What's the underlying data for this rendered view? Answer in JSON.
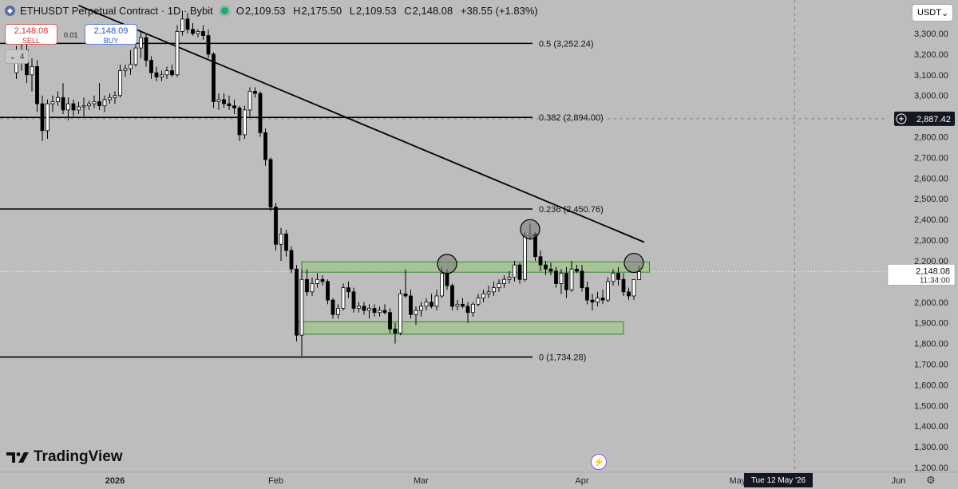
{
  "header": {
    "symbol": "ETHUSDT Perpetual Contract · 1D · Bybit",
    "open_label": "O",
    "open": "2,109.53",
    "high_label": "H",
    "high": "2,175.50",
    "low_label": "L",
    "low": "2,109.53",
    "close_label": "C",
    "close": "2,148.08",
    "change": "+38.55 (+1.83%)"
  },
  "trade": {
    "sell_price": "2,148.08",
    "sell_label": "SELL",
    "buy_price": "2,148.09",
    "buy_label": "BUY",
    "spread": "0.01",
    "indicator_count": "4"
  },
  "currency": "USDT",
  "brand": "TradingView",
  "crosshair": {
    "price": "2,887.42",
    "date": "Tue 12 May '26"
  },
  "last_price": {
    "price": "2,148.08",
    "countdown": "11:34:00"
  },
  "colors": {
    "candle_up": "#ffffff",
    "candle_down": "#000000",
    "background": "#bdbdbd",
    "zone_fill": "#98c878",
    "zone_stroke": "#2e8b2e",
    "circle": "#7a7a7a",
    "price_tag": "#ffffff",
    "crosshair_tag": "#131722"
  },
  "chart_data": {
    "type": "candlestick",
    "y_scale": "linear",
    "ylim": [
      1140,
      3430
    ],
    "y_ticks": [
      "3,300.00",
      "3,200.00",
      "3,100.00",
      "3,000.00",
      "2,800.00",
      "2,700.00",
      "2,600.00",
      "2,500.00",
      "2,400.00",
      "2,300.00",
      "2,200.00",
      "2,100.00",
      "2,000.00",
      "1,900.00",
      "1,800.00",
      "1,700.00",
      "1,600.00",
      "1,500.00",
      "1,400.00",
      "1,300.00",
      "1,200.00"
    ],
    "x_ticks": [
      "2026",
      "Feb",
      "Mar",
      "Apr",
      "May",
      "Jun"
    ],
    "fib_levels": [
      {
        "label": "0.5 (3,252.24)",
        "value": 3252.24
      },
      {
        "label": "0.382 (2,894.00)",
        "value": 2894.0
      },
      {
        "label": "0.236 (2,450.76)",
        "value": 2450.76
      },
      {
        "label": "0 (1,734.28)",
        "value": 1734.28
      }
    ],
    "trendline": {
      "start": {
        "date": "2025-12-25",
        "price": 3436
      },
      "end": {
        "date": "2026-04-13",
        "price": 2290
      }
    },
    "zones": [
      {
        "name": "resistance",
        "date_start": "2026-02-06",
        "date_end": "2026-04-14",
        "price_low": 2145,
        "price_high": 2195
      },
      {
        "name": "support",
        "date_start": "2026-02-05",
        "date_end": "2026-04-09",
        "price_low": 1845,
        "price_high": 1905
      }
    ],
    "markers": [
      {
        "date": "2026-03-06",
        "price": 2185
      },
      {
        "date": "2026-03-22",
        "price": 2353
      },
      {
        "date": "2026-04-11",
        "price": 2190
      }
    ],
    "candles": [
      {
        "d": "2025-12-13",
        "o": 3110,
        "h": 3240,
        "l": 3080,
        "c": 3180
      },
      {
        "d": "2025-12-14",
        "o": 3180,
        "h": 3260,
        "l": 3120,
        "c": 3220
      },
      {
        "d": "2025-12-15",
        "o": 3220,
        "h": 3250,
        "l": 3060,
        "c": 3100
      },
      {
        "d": "2025-12-16",
        "o": 3100,
        "h": 3180,
        "l": 3020,
        "c": 3140
      },
      {
        "d": "2025-12-17",
        "o": 3140,
        "h": 3170,
        "l": 2920,
        "c": 2960
      },
      {
        "d": "2025-12-18",
        "o": 2960,
        "h": 3000,
        "l": 2780,
        "c": 2830
      },
      {
        "d": "2025-12-19",
        "o": 2830,
        "h": 2980,
        "l": 2790,
        "c": 2960
      },
      {
        "d": "2025-12-20",
        "o": 2960,
        "h": 3000,
        "l": 2920,
        "c": 2970
      },
      {
        "d": "2025-12-21",
        "o": 2970,
        "h": 3020,
        "l": 2950,
        "c": 2990
      },
      {
        "d": "2025-12-22",
        "o": 2990,
        "h": 3060,
        "l": 2910,
        "c": 2930
      },
      {
        "d": "2025-12-23",
        "o": 2930,
        "h": 2990,
        "l": 2880,
        "c": 2960
      },
      {
        "d": "2025-12-24",
        "o": 2960,
        "h": 2980,
        "l": 2900,
        "c": 2930
      },
      {
        "d": "2025-12-25",
        "o": 2930,
        "h": 2970,
        "l": 2910,
        "c": 2945
      },
      {
        "d": "2025-12-26",
        "o": 2945,
        "h": 2990,
        "l": 2900,
        "c": 2950
      },
      {
        "d": "2025-12-27",
        "o": 2950,
        "h": 2975,
        "l": 2930,
        "c": 2960
      },
      {
        "d": "2025-12-28",
        "o": 2960,
        "h": 3000,
        "l": 2940,
        "c": 2970
      },
      {
        "d": "2025-12-29",
        "o": 2970,
        "h": 3060,
        "l": 2930,
        "c": 2950
      },
      {
        "d": "2025-12-30",
        "o": 2950,
        "h": 3000,
        "l": 2920,
        "c": 2980
      },
      {
        "d": "2025-12-31",
        "o": 2980,
        "h": 3010,
        "l": 2960,
        "c": 2990
      },
      {
        "d": "2026-01-01",
        "o": 2990,
        "h": 3020,
        "l": 2960,
        "c": 3000
      },
      {
        "d": "2026-01-02",
        "o": 3000,
        "h": 3150,
        "l": 2990,
        "c": 3120
      },
      {
        "d": "2026-01-03",
        "o": 3120,
        "h": 3150,
        "l": 3090,
        "c": 3130
      },
      {
        "d": "2026-01-04",
        "o": 3130,
        "h": 3220,
        "l": 3100,
        "c": 3150
      },
      {
        "d": "2026-01-05",
        "o": 3150,
        "h": 3270,
        "l": 3140,
        "c": 3230
      },
      {
        "d": "2026-01-06",
        "o": 3230,
        "h": 3310,
        "l": 3180,
        "c": 3280
      },
      {
        "d": "2026-01-07",
        "o": 3280,
        "h": 3300,
        "l": 3140,
        "c": 3170
      },
      {
        "d": "2026-01-08",
        "o": 3170,
        "h": 3190,
        "l": 3080,
        "c": 3110
      },
      {
        "d": "2026-01-09",
        "o": 3110,
        "h": 3140,
        "l": 3070,
        "c": 3090
      },
      {
        "d": "2026-01-10",
        "o": 3090,
        "h": 3120,
        "l": 3070,
        "c": 3100
      },
      {
        "d": "2026-01-11",
        "o": 3100,
        "h": 3140,
        "l": 3080,
        "c": 3120
      },
      {
        "d": "2026-01-12",
        "o": 3120,
        "h": 3150,
        "l": 3090,
        "c": 3100
      },
      {
        "d": "2026-01-13",
        "o": 3100,
        "h": 3340,
        "l": 3090,
        "c": 3310
      },
      {
        "d": "2026-01-14",
        "o": 3310,
        "h": 3410,
        "l": 3290,
        "c": 3370
      },
      {
        "d": "2026-01-15",
        "o": 3370,
        "h": 3400,
        "l": 3300,
        "c": 3320
      },
      {
        "d": "2026-01-16",
        "o": 3320,
        "h": 3350,
        "l": 3290,
        "c": 3300
      },
      {
        "d": "2026-01-17",
        "o": 3300,
        "h": 3320,
        "l": 3280,
        "c": 3310
      },
      {
        "d": "2026-01-18",
        "o": 3310,
        "h": 3340,
        "l": 3270,
        "c": 3290
      },
      {
        "d": "2026-01-19",
        "o": 3290,
        "h": 3320,
        "l": 3180,
        "c": 3200
      },
      {
        "d": "2026-01-20",
        "o": 3200,
        "h": 3210,
        "l": 2940,
        "c": 2970
      },
      {
        "d": "2026-01-21",
        "o": 2970,
        "h": 3010,
        "l": 2930,
        "c": 2980
      },
      {
        "d": "2026-01-22",
        "o": 2980,
        "h": 3010,
        "l": 2940,
        "c": 2960
      },
      {
        "d": "2026-01-23",
        "o": 2960,
        "h": 3000,
        "l": 2930,
        "c": 2950
      },
      {
        "d": "2026-01-24",
        "o": 2950,
        "h": 2980,
        "l": 2910,
        "c": 2940
      },
      {
        "d": "2026-01-25",
        "o": 2940,
        "h": 2950,
        "l": 2780,
        "c": 2810
      },
      {
        "d": "2026-01-26",
        "o": 2810,
        "h": 2950,
        "l": 2790,
        "c": 2930
      },
      {
        "d": "2026-01-27",
        "o": 2930,
        "h": 3040,
        "l": 2900,
        "c": 3020
      },
      {
        "d": "2026-01-28",
        "o": 3020,
        "h": 3040,
        "l": 2990,
        "c": 3010
      },
      {
        "d": "2026-01-29",
        "o": 3010,
        "h": 3020,
        "l": 2800,
        "c": 2820
      },
      {
        "d": "2026-01-30",
        "o": 2820,
        "h": 2840,
        "l": 2660,
        "c": 2690
      },
      {
        "d": "2026-01-31",
        "o": 2690,
        "h": 2700,
        "l": 2440,
        "c": 2460
      },
      {
        "d": "2026-02-01",
        "o": 2460,
        "h": 2480,
        "l": 2250,
        "c": 2280
      },
      {
        "d": "2026-02-02",
        "o": 2280,
        "h": 2360,
        "l": 2200,
        "c": 2330
      },
      {
        "d": "2026-02-03",
        "o": 2330,
        "h": 2350,
        "l": 2220,
        "c": 2250
      },
      {
        "d": "2026-02-04",
        "o": 2250,
        "h": 2270,
        "l": 2140,
        "c": 2160
      },
      {
        "d": "2026-02-05",
        "o": 2160,
        "h": 2180,
        "l": 1810,
        "c": 1840
      },
      {
        "d": "2026-02-06",
        "o": 1840,
        "h": 2160,
        "l": 1740,
        "c": 2110
      },
      {
        "d": "2026-02-07",
        "o": 2110,
        "h": 2160,
        "l": 2030,
        "c": 2050
      },
      {
        "d": "2026-02-08",
        "o": 2050,
        "h": 2120,
        "l": 2030,
        "c": 2090
      },
      {
        "d": "2026-02-09",
        "o": 2090,
        "h": 2140,
        "l": 2070,
        "c": 2110
      },
      {
        "d": "2026-02-10",
        "o": 2110,
        "h": 2130,
        "l": 2080,
        "c": 2100
      },
      {
        "d": "2026-02-11",
        "o": 2100,
        "h": 2110,
        "l": 1990,
        "c": 2010
      },
      {
        "d": "2026-02-12",
        "o": 2010,
        "h": 2020,
        "l": 1920,
        "c": 1940
      },
      {
        "d": "2026-02-13",
        "o": 1940,
        "h": 1990,
        "l": 1920,
        "c": 1970
      },
      {
        "d": "2026-02-14",
        "o": 1970,
        "h": 2090,
        "l": 1960,
        "c": 2070
      },
      {
        "d": "2026-02-15",
        "o": 2070,
        "h": 2100,
        "l": 2020,
        "c": 2050
      },
      {
        "d": "2026-02-16",
        "o": 2050,
        "h": 2070,
        "l": 1950,
        "c": 1970
      },
      {
        "d": "2026-02-17",
        "o": 1970,
        "h": 2000,
        "l": 1950,
        "c": 1980
      },
      {
        "d": "2026-02-18",
        "o": 1980,
        "h": 2000,
        "l": 1940,
        "c": 1960
      },
      {
        "d": "2026-02-19",
        "o": 1960,
        "h": 1990,
        "l": 1920,
        "c": 1970
      },
      {
        "d": "2026-02-20",
        "o": 1970,
        "h": 1990,
        "l": 1930,
        "c": 1950
      },
      {
        "d": "2026-02-21",
        "o": 1950,
        "h": 1980,
        "l": 1930,
        "c": 1960
      },
      {
        "d": "2026-02-22",
        "o": 1960,
        "h": 1990,
        "l": 1940,
        "c": 1950
      },
      {
        "d": "2026-02-23",
        "o": 1950,
        "h": 1970,
        "l": 1850,
        "c": 1870
      },
      {
        "d": "2026-02-24",
        "o": 1870,
        "h": 1900,
        "l": 1800,
        "c": 1850
      },
      {
        "d": "2026-02-25",
        "o": 1850,
        "h": 2060,
        "l": 1840,
        "c": 2040
      },
      {
        "d": "2026-02-26",
        "o": 2040,
        "h": 2160,
        "l": 2020,
        "c": 2030
      },
      {
        "d": "2026-02-27",
        "o": 2030,
        "h": 2060,
        "l": 1920,
        "c": 1940
      },
      {
        "d": "2026-02-28",
        "o": 1940,
        "h": 1980,
        "l": 1890,
        "c": 1960
      },
      {
        "d": "2026-03-01",
        "o": 1960,
        "h": 2000,
        "l": 1930,
        "c": 1980
      },
      {
        "d": "2026-03-02",
        "o": 1980,
        "h": 2020,
        "l": 1960,
        "c": 2000
      },
      {
        "d": "2026-03-03",
        "o": 2000,
        "h": 2040,
        "l": 1970,
        "c": 1980
      },
      {
        "d": "2026-03-04",
        "o": 1980,
        "h": 2060,
        "l": 1960,
        "c": 2030
      },
      {
        "d": "2026-03-05",
        "o": 2030,
        "h": 2170,
        "l": 2020,
        "c": 2140
      },
      {
        "d": "2026-03-06",
        "o": 2140,
        "h": 2160,
        "l": 2060,
        "c": 2080
      },
      {
        "d": "2026-03-07",
        "o": 2080,
        "h": 2090,
        "l": 1960,
        "c": 1980
      },
      {
        "d": "2026-03-08",
        "o": 1980,
        "h": 2010,
        "l": 1960,
        "c": 1990
      },
      {
        "d": "2026-03-09",
        "o": 1990,
        "h": 2020,
        "l": 1970,
        "c": 1980
      },
      {
        "d": "2026-03-10",
        "o": 1980,
        "h": 2000,
        "l": 1900,
        "c": 1950
      },
      {
        "d": "2026-03-11",
        "o": 1950,
        "h": 2000,
        "l": 1930,
        "c": 1990
      },
      {
        "d": "2026-03-12",
        "o": 1990,
        "h": 2040,
        "l": 1980,
        "c": 2020
      },
      {
        "d": "2026-03-13",
        "o": 2020,
        "h": 2060,
        "l": 2000,
        "c": 2040
      },
      {
        "d": "2026-03-14",
        "o": 2040,
        "h": 2080,
        "l": 2020,
        "c": 2050
      },
      {
        "d": "2026-03-15",
        "o": 2050,
        "h": 2100,
        "l": 2030,
        "c": 2070
      },
      {
        "d": "2026-03-16",
        "o": 2070,
        "h": 2110,
        "l": 2050,
        "c": 2090
      },
      {
        "d": "2026-03-17",
        "o": 2090,
        "h": 2130,
        "l": 2070,
        "c": 2110
      },
      {
        "d": "2026-03-18",
        "o": 2110,
        "h": 2150,
        "l": 2090,
        "c": 2120
      },
      {
        "d": "2026-03-19",
        "o": 2120,
        "h": 2200,
        "l": 2100,
        "c": 2180
      },
      {
        "d": "2026-03-20",
        "o": 2180,
        "h": 2190,
        "l": 2090,
        "c": 2110
      },
      {
        "d": "2026-03-21",
        "o": 2110,
        "h": 2340,
        "l": 2100,
        "c": 2320
      },
      {
        "d": "2026-03-22",
        "o": 2320,
        "h": 2380,
        "l": 2300,
        "c": 2330
      },
      {
        "d": "2026-03-23",
        "o": 2330,
        "h": 2340,
        "l": 2200,
        "c": 2220
      },
      {
        "d": "2026-03-24",
        "o": 2220,
        "h": 2250,
        "l": 2150,
        "c": 2180
      },
      {
        "d": "2026-03-25",
        "o": 2180,
        "h": 2200,
        "l": 2130,
        "c": 2160
      },
      {
        "d": "2026-03-26",
        "o": 2160,
        "h": 2190,
        "l": 2130,
        "c": 2150
      },
      {
        "d": "2026-03-27",
        "o": 2150,
        "h": 2170,
        "l": 2070,
        "c": 2090
      },
      {
        "d": "2026-03-28",
        "o": 2090,
        "h": 2160,
        "l": 2040,
        "c": 2140
      },
      {
        "d": "2026-03-29",
        "o": 2140,
        "h": 2170,
        "l": 2020,
        "c": 2060
      },
      {
        "d": "2026-03-30",
        "o": 2060,
        "h": 2200,
        "l": 2050,
        "c": 2160
      },
      {
        "d": "2026-03-31",
        "o": 2160,
        "h": 2180,
        "l": 2140,
        "c": 2150
      },
      {
        "d": "2026-04-01",
        "o": 2150,
        "h": 2180,
        "l": 2050,
        "c": 2070
      },
      {
        "d": "2026-04-02",
        "o": 2070,
        "h": 2100,
        "l": 1990,
        "c": 2010
      },
      {
        "d": "2026-04-03",
        "o": 2010,
        "h": 2040,
        "l": 1960,
        "c": 2000
      },
      {
        "d": "2026-04-04",
        "o": 2000,
        "h": 2050,
        "l": 1980,
        "c": 2020
      },
      {
        "d": "2026-04-05",
        "o": 2020,
        "h": 2060,
        "l": 1990,
        "c": 2010
      },
      {
        "d": "2026-04-06",
        "o": 2010,
        "h": 2120,
        "l": 2000,
        "c": 2100
      },
      {
        "d": "2026-04-07",
        "o": 2100,
        "h": 2160,
        "l": 2080,
        "c": 2140
      },
      {
        "d": "2026-04-08",
        "o": 2140,
        "h": 2170,
        "l": 2080,
        "c": 2110
      },
      {
        "d": "2026-04-09",
        "o": 2110,
        "h": 2140,
        "l": 2030,
        "c": 2050
      },
      {
        "d": "2026-04-10",
        "o": 2050,
        "h": 2070,
        "l": 2010,
        "c": 2030
      },
      {
        "d": "2026-04-11",
        "o": 2030,
        "h": 2110,
        "l": 2010,
        "c": 2109.53
      },
      {
        "d": "2026-04-12",
        "o": 2109.53,
        "h": 2175.5,
        "l": 2109.53,
        "c": 2148.08
      }
    ]
  }
}
